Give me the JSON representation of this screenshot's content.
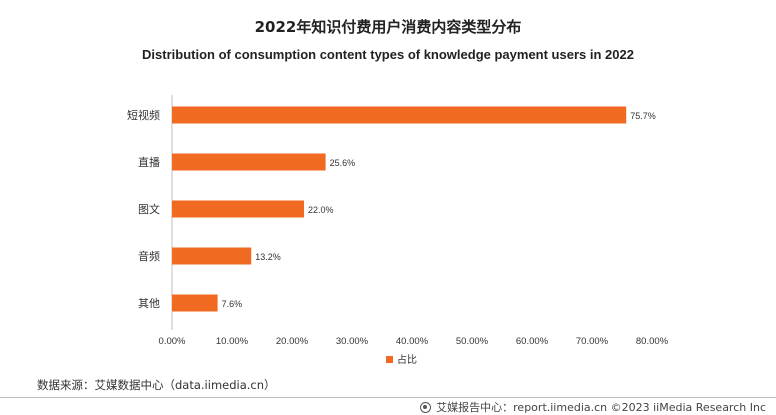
{
  "header": {
    "title_cn": "2022年知识付费用户消费内容类型分布",
    "title_en": "Distribution of consumption content types of knowledge payment users in 2022"
  },
  "chart_data": {
    "type": "bar",
    "orientation": "horizontal",
    "categories": [
      "短视频",
      "直播",
      "图文",
      "音频",
      "其他"
    ],
    "series": [
      {
        "name": "占比",
        "values": [
          75.7,
          25.6,
          22.0,
          13.2,
          7.6
        ],
        "color": "#f06a22"
      }
    ],
    "data_labels": [
      "75.7%",
      "25.6%",
      "22.0%",
      "13.2%",
      "7.6%"
    ],
    "xlim": [
      0,
      80
    ],
    "xticks": [
      "0.00%",
      "10.00%",
      "20.00%",
      "30.00%",
      "40.00%",
      "50.00%",
      "60.00%",
      "70.00%",
      "80.00%"
    ],
    "grid": false,
    "legend_position": "bottom-center"
  },
  "source": "数据来源：艾媒数据中心（data.iimedia.cn）",
  "footer": {
    "text": "艾媒报告中心：report.iimedia.cn ©2023 iiMedia Research Inc"
  }
}
